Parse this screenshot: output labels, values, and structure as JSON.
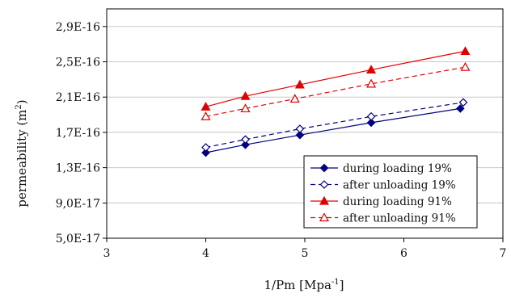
{
  "chart_data": {
    "type": "line",
    "xlabel": "1/Pm [Mpa",
    "xlabel_sup": "-1",
    "xlabel_end": "]",
    "ylabel": "permeability (m",
    "ylabel_sup": "2",
    "ylabel_end": ")",
    "xlim": [
      3,
      7
    ],
    "ylim": [
      5e-17,
      3.1e-16
    ],
    "x_ticks": [
      3,
      4,
      5,
      6,
      7
    ],
    "x_tick_labels": [
      "3",
      "4",
      "5",
      "6",
      "7"
    ],
    "y_ticks": [
      5e-17,
      9e-17,
      1.3e-16,
      1.7e-16,
      2.1e-16,
      2.5e-16,
      2.9e-16
    ],
    "y_tick_labels": [
      "5,0E-17",
      "9,0E-17",
      "1,3E-16",
      "1,7E-16",
      "2,1E-16",
      "2,5E-16",
      "2,9E-16"
    ],
    "grid": "horizontal",
    "legend_position": "bottom-right",
    "series": [
      {
        "name": "during loading 19%",
        "color": "#000080",
        "marker": "diamond-filled",
        "dash": "solid",
        "x": [
          4.0,
          4.4,
          4.95,
          5.67,
          6.57
        ],
        "y": [
          1.47e-16,
          1.56e-16,
          1.67e-16,
          1.81e-16,
          1.97e-16
        ]
      },
      {
        "name": "after unloading 19%",
        "color": "#000080",
        "marker": "diamond-open",
        "dash": "dashed",
        "x": [
          4.0,
          4.4,
          4.95,
          5.67,
          6.6
        ],
        "y": [
          1.53e-16,
          1.62e-16,
          1.74e-16,
          1.88e-16,
          2.04e-16
        ]
      },
      {
        "name": "during loading 91%",
        "color": "#e00000",
        "marker": "triangle-filled",
        "dash": "solid",
        "x": [
          4.0,
          4.4,
          4.95,
          5.67,
          6.62
        ],
        "y": [
          1.99e-16,
          2.11e-16,
          2.24e-16,
          2.41e-16,
          2.62e-16
        ]
      },
      {
        "name": "after unloading 91%",
        "color": "#e00000",
        "marker": "triangle-open",
        "dash": "dashed",
        "x": [
          4.0,
          4.4,
          4.9,
          5.67,
          6.62
        ],
        "y": [
          1.88e-16,
          1.97e-16,
          2.08e-16,
          2.25e-16,
          2.44e-16
        ]
      }
    ]
  }
}
